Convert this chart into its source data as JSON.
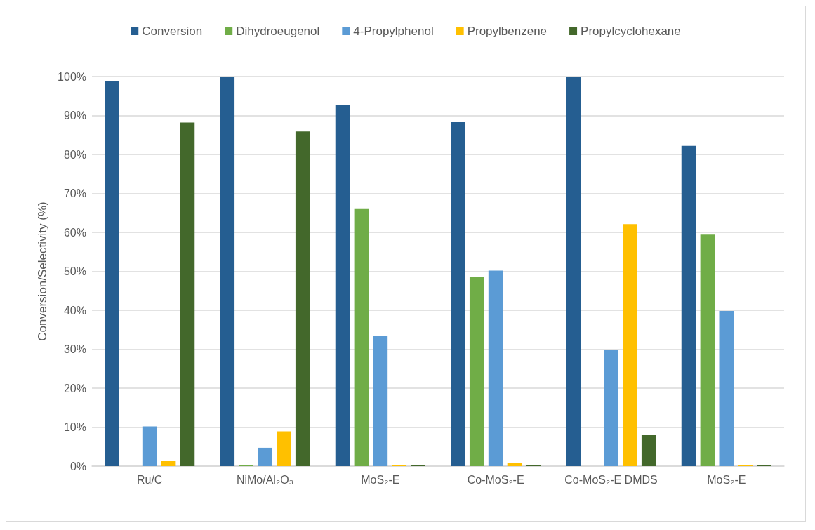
{
  "chart_data": {
    "type": "bar",
    "ylabel": "Conversion/Selectivity (%)",
    "categories": [
      "Ru/C",
      "NiMo/Al₂O₃",
      "MoS₂-E",
      "Co-MoS₂-E",
      "Co-MoS₂-E DMDS",
      "MoS₂-E"
    ],
    "series": [
      {
        "name": "Conversion",
        "color": "#255e91",
        "values": [
          98.8,
          100,
          92.8,
          88.3,
          100,
          82.2
        ]
      },
      {
        "name": "Dihydroeugenol",
        "color": "#70ad47",
        "values": [
          0,
          0.3,
          66,
          48.5,
          0,
          59.4
        ]
      },
      {
        "name": "4-Propylphenol",
        "color": "#5b9bd5",
        "values": [
          10.2,
          4.7,
          33.4,
          50.2,
          29.8,
          39.8
        ]
      },
      {
        "name": "Propylbenzene",
        "color": "#ffc000",
        "values": [
          1.4,
          8.9,
          0.3,
          0.9,
          62.1,
          0.3
        ]
      },
      {
        "name": "Propylcyclohexane",
        "color": "#43682b",
        "values": [
          88.2,
          85.9,
          0.3,
          0.3,
          8.1,
          0.3
        ]
      }
    ],
    "ylim": [
      0,
      100
    ],
    "yticks": [
      {
        "value": 0,
        "label": "0%"
      },
      {
        "value": 10,
        "label": "10%"
      },
      {
        "value": 20,
        "label": "20%"
      },
      {
        "value": 30,
        "label": "30%"
      },
      {
        "value": 40,
        "label": "40%"
      },
      {
        "value": 50,
        "label": "50%"
      },
      {
        "value": 60,
        "label": "60%"
      },
      {
        "value": 70,
        "label": "70%"
      },
      {
        "value": 80,
        "label": "80%"
      },
      {
        "value": 90,
        "label": "90%"
      },
      {
        "value": 100,
        "label": "100%"
      }
    ],
    "grid": "y",
    "legend": "top"
  }
}
